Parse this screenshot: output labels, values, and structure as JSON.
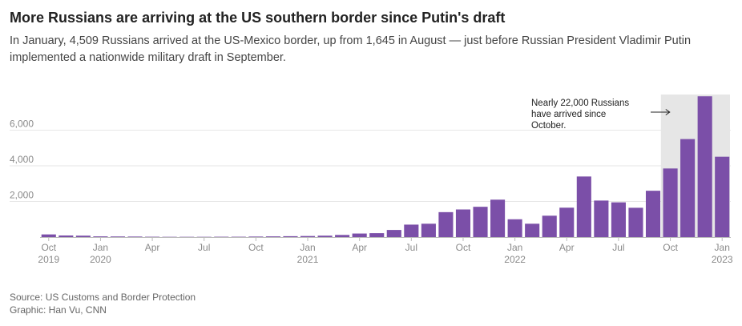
{
  "header": {
    "title": "More Russians are arriving at the US southern border since Putin's draft",
    "subtitle": "In January, 4,509 Russians arrived at the US-Mexico border, up from 1,645 in August — just before Russian President Vladimir Putin implemented a nationwide military draft in September."
  },
  "footer": {
    "source": "Source: US Customs and Border Protection",
    "credit": "Graphic: Han Vu, CNN"
  },
  "colors": {
    "bar": "#7b4fa8",
    "highlight_band": "#e6e6e6",
    "grid": "#e6e6e6",
    "axis": "#bbbbbb"
  },
  "chart_data": {
    "type": "bar",
    "title": "",
    "xlabel": "",
    "ylabel": "",
    "ylim": [
      0,
      8000
    ],
    "y_ticks": [
      2000,
      4000,
      6000
    ],
    "y_tick_labels": [
      "2,000",
      "4,000",
      "6,000"
    ],
    "categories": [
      "Oct 2019",
      "Nov 2019",
      "Dec 2019",
      "Jan 2020",
      "Feb 2020",
      "Mar 2020",
      "Apr 2020",
      "May 2020",
      "Jun 2020",
      "Jul 2020",
      "Aug 2020",
      "Sep 2020",
      "Oct 2020",
      "Nov 2020",
      "Dec 2020",
      "Jan 2021",
      "Feb 2021",
      "Mar 2021",
      "Apr 2021",
      "May 2021",
      "Jun 2021",
      "Jul 2021",
      "Aug 2021",
      "Sep 2021",
      "Oct 2021",
      "Nov 2021",
      "Dec 2021",
      "Jan 2022",
      "Feb 2022",
      "Mar 2022",
      "Apr 2022",
      "May 2022",
      "Jun 2022",
      "Jul 2022",
      "Aug 2022",
      "Sep 2022",
      "Oct 2022",
      "Nov 2022",
      "Dec 2022",
      "Jan 2023"
    ],
    "values": [
      150,
      90,
      80,
      40,
      35,
      30,
      20,
      15,
      15,
      15,
      20,
      20,
      30,
      40,
      50,
      60,
      80,
      120,
      200,
      220,
      400,
      700,
      750,
      1400,
      1550,
      1700,
      2100,
      1000,
      750,
      1200,
      1650,
      3400,
      2050,
      1950,
      1645,
      2600,
      3850,
      5500,
      7900,
      4509
    ],
    "x_ticks": [
      {
        "index": 0,
        "month": "Oct",
        "year": "2019"
      },
      {
        "index": 3,
        "month": "Jan",
        "year": "2020"
      },
      {
        "index": 6,
        "month": "Apr",
        "year": ""
      },
      {
        "index": 9,
        "month": "Jul",
        "year": ""
      },
      {
        "index": 12,
        "month": "Oct",
        "year": ""
      },
      {
        "index": 15,
        "month": "Jan",
        "year": "2021"
      },
      {
        "index": 18,
        "month": "Apr",
        "year": ""
      },
      {
        "index": 21,
        "month": "Jul",
        "year": ""
      },
      {
        "index": 24,
        "month": "Oct",
        "year": ""
      },
      {
        "index": 27,
        "month": "Jan",
        "year": "2022"
      },
      {
        "index": 30,
        "month": "Apr",
        "year": ""
      },
      {
        "index": 33,
        "month": "Jul",
        "year": ""
      },
      {
        "index": 36,
        "month": "Oct",
        "year": ""
      },
      {
        "index": 39,
        "month": "Jan",
        "year": "2023"
      }
    ],
    "highlight_range": [
      "Oct 2022",
      "Jan 2023"
    ],
    "annotation": {
      "lines": [
        "Nearly 22,000 Russians",
        "have arrived since",
        "October."
      ]
    },
    "grid": true,
    "legend": "none"
  }
}
